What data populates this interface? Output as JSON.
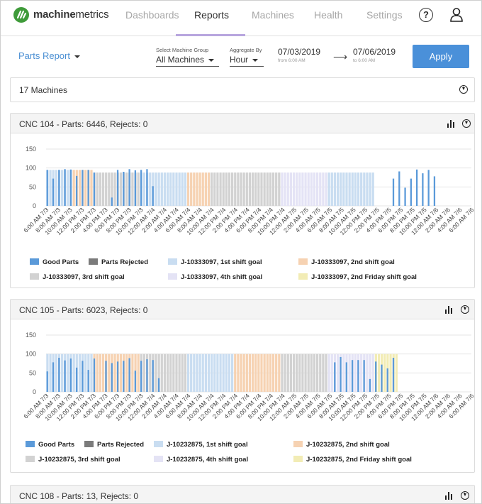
{
  "brand": {
    "bold": "machine",
    "rest": "metrics"
  },
  "nav": {
    "items": [
      "Dashboards",
      "Reports",
      "Machines",
      "Health",
      "Settings"
    ],
    "active": "Reports"
  },
  "filters": {
    "report": "Parts Report",
    "group_label": "Select Machine Group",
    "group_value": "All Machines",
    "agg_label": "Aggregate By",
    "agg_value": "Hour",
    "start_date": "07/03/2019",
    "start_sub": "from 6:00 AM",
    "end_date": "07/06/2019",
    "end_sub": "to 6:00 AM",
    "apply": "Apply"
  },
  "summary": {
    "label": "17 Machines"
  },
  "colors": {
    "good": "#5b9ad9",
    "rejected": "#7b7b7b",
    "shift1": "#c9ddf1",
    "shift2": "#f6d2b2",
    "shift3": "#d2d2d2",
    "shift4": "#e4e3f5",
    "friday": "#f2ecb5",
    "grid": "#e4e4e4"
  },
  "panels": [
    {
      "title": "CNC 104 - Parts: 6446, Rejects: 0",
      "legend": [
        "Good Parts",
        "Parts Rejected",
        "J-10333097, 1st shift goal",
        "J-10333097, 2nd shift goal",
        "J-10333097, 3rd shift goal",
        "J-10333097, 4th shift goal",
        "J-10333097, 2nd Friday shift goal"
      ],
      "chart_data": {
        "type": "bar",
        "ylim": [
          0,
          150
        ],
        "yticks": [
          0,
          50,
          100,
          150
        ],
        "xticks": [
          "6:00 AM 7/3",
          "8:00 AM 7/3",
          "10:00 AM 7/3",
          "12:00 PM 7/3",
          "2:00 PM 7/3",
          "4:00 PM 7/3",
          "6:00 PM 7/3",
          "8:00 PM 7/3",
          "10:00 PM 7/3",
          "12:00 AM 7/4",
          "2:00 AM 7/4",
          "4:00 AM 7/4",
          "6:00 AM 7/4",
          "8:00 AM 7/4",
          "10:00 AM 7/4",
          "12:00 PM 7/4",
          "2:00 PM 7/4",
          "4:00 PM 7/4",
          "6:00 PM 7/4",
          "8:00 PM 7/4",
          "10:00 PM 7/4",
          "12:00 AM 7/5",
          "2:00 AM 7/5",
          "4:00 AM 7/5",
          "6:00 AM 7/5",
          "8:00 AM 7/5",
          "10:00 AM 7/5",
          "12:00 PM 7/5",
          "2:00 PM 7/5",
          "4:00 PM 7/5",
          "6:00 PM 7/5",
          "8:00 PM 7/5",
          "10:00 PM 7/5",
          "12:00 AM 7/6",
          "2:00 AM 7/6",
          "4:00 AM 7/6",
          "6:00 AM 7/6"
        ],
        "goal_shifts": [
          1,
          1,
          1,
          1,
          1,
          1,
          1,
          1,
          1,
          2,
          2,
          2,
          2,
          2,
          2,
          2,
          3,
          3,
          3,
          3,
          3,
          3,
          3,
          3,
          3,
          3,
          3,
          3,
          3,
          3,
          3,
          3,
          1,
          1,
          1,
          1,
          1,
          1,
          1,
          1,
          1,
          1,
          1,
          1,
          1,
          1,
          1,
          1,
          2,
          2,
          2,
          2,
          2,
          2,
          2,
          2,
          3,
          3,
          3,
          3,
          3,
          3,
          3,
          3,
          3,
          3,
          3,
          3,
          3,
          3,
          3,
          3,
          3,
          3,
          3,
          3,
          3,
          3,
          3,
          3,
          4,
          4,
          4,
          4,
          4,
          4,
          4,
          4,
          4,
          4,
          4,
          4,
          4,
          4,
          4,
          4,
          1,
          1,
          1,
          1,
          1,
          1,
          1,
          1,
          1,
          1,
          1,
          1,
          1,
          1,
          1,
          1,
          0,
          0,
          0,
          0,
          0,
          0,
          0,
          0,
          0,
          0,
          0,
          0,
          0,
          0,
          0,
          0,
          0,
          0,
          0,
          0,
          0,
          0,
          0,
          0,
          0,
          0,
          0,
          0,
          0,
          0,
          0,
          0,
          0
        ],
        "goal_values": [
          95,
          95,
          95,
          95,
          95,
          95,
          95,
          95,
          95,
          95,
          95,
          95,
          95,
          95,
          95,
          95,
          88,
          88,
          88,
          88,
          88,
          88,
          88,
          88,
          88,
          88,
          88,
          88,
          88,
          88,
          88,
          88,
          88,
          88,
          88,
          88,
          88,
          88,
          88,
          88,
          88,
          88,
          88,
          88,
          88,
          88,
          88,
          88,
          88,
          88,
          88,
          88,
          88,
          88,
          88,
          88,
          88,
          88,
          88,
          88,
          88,
          88,
          88,
          88,
          88,
          88,
          88,
          88,
          88,
          88,
          88,
          88,
          88,
          88,
          88,
          88,
          88,
          88,
          88,
          88,
          88,
          88,
          88,
          88,
          88,
          88,
          88,
          88,
          88,
          88,
          88,
          88,
          88,
          88,
          88,
          88,
          88,
          88,
          88,
          88,
          88,
          88,
          88,
          88,
          88,
          88,
          88,
          88,
          88,
          88,
          88,
          88,
          0,
          0,
          0,
          0,
          0,
          0,
          0,
          0,
          0,
          0,
          0,
          0,
          0,
          0,
          0,
          0,
          0,
          0,
          0,
          0,
          0,
          0,
          0,
          0,
          0,
          0,
          0,
          0,
          0,
          0,
          0,
          0,
          0
        ],
        "good_parts": [
          95,
          0,
          72,
          0,
          95,
          0,
          97,
          0,
          96,
          0,
          79,
          0,
          95,
          0,
          95,
          0,
          88,
          0,
          0,
          0,
          0,
          0,
          22,
          0,
          95,
          0,
          90,
          0,
          97,
          0,
          94,
          0,
          95,
          0,
          97,
          0,
          52,
          0,
          0,
          0,
          0,
          0,
          0,
          0,
          0,
          0,
          0,
          0,
          0,
          0,
          0,
          0,
          0,
          0,
          0,
          0,
          0,
          0,
          0,
          0,
          0,
          0,
          0,
          0,
          0,
          0,
          0,
          0,
          0,
          0,
          0,
          0,
          0,
          0,
          0,
          0,
          0,
          0,
          0,
          0,
          0,
          0,
          0,
          0,
          0,
          0,
          0,
          0,
          0,
          0,
          0,
          0,
          0,
          0,
          0,
          0,
          0,
          0,
          0,
          0,
          0,
          0,
          0,
          0,
          0,
          0,
          0,
          0,
          0,
          0,
          0,
          0,
          0,
          0,
          0,
          0,
          0,
          0,
          72,
          0,
          91,
          0,
          48,
          0,
          72,
          0,
          96,
          0,
          86,
          0,
          95,
          0,
          78,
          0,
          0,
          0,
          0,
          0,
          0,
          0,
          0,
          0,
          0,
          0,
          0,
          0,
          0
        ],
        "friday_index": 144
      }
    },
    {
      "title": "CNC 105 - Parts: 6023, Rejects: 0",
      "legend": [
        "Good Parts",
        "Parts Rejected",
        "J-10232875, 1st shift goal",
        "J-10232875, 2nd shift goal",
        "J-10232875, 3rd shift goal",
        "J-10232875, 4th shift goal",
        "J-10232875, 2nd Friday shift goal"
      ],
      "chart_data": {
        "type": "bar",
        "ylim": [
          0,
          150
        ],
        "yticks": [
          0,
          50,
          100,
          150
        ],
        "xticks": [
          "6:00 AM 7/3",
          "8:00 AM 7/3",
          "10:00 AM 7/3",
          "12:00 PM 7/3",
          "2:00 PM 7/3",
          "4:00 PM 7/3",
          "6:00 PM 7/3",
          "8:00 PM 7/3",
          "10:00 PM 7/3",
          "12:00 AM 7/4",
          "2:00 AM 7/4",
          "4:00 AM 7/4",
          "6:00 AM 7/4",
          "8:00 AM 7/4",
          "10:00 AM 7/4",
          "12:00 PM 7/4",
          "2:00 PM 7/4",
          "4:00 PM 7/4",
          "6:00 PM 7/4",
          "8:00 PM 7/4",
          "10:00 PM 7/4",
          "12:00 AM 7/5",
          "2:00 AM 7/5",
          "4:00 AM 7/5",
          "6:00 AM 7/5",
          "8:00 AM 7/5",
          "10:00 AM 7/5",
          "12:00 PM 7/5",
          "2:00 PM 7/5",
          "4:00 PM 7/5",
          "6:00 PM 7/5",
          "8:00 PM 7/5",
          "10:00 PM 7/5",
          "12:00 AM 7/6",
          "2:00 AM 7/6",
          "4:00 AM 7/6",
          "6:00 AM 7/6"
        ],
        "goal_shifts": [
          1,
          1,
          1,
          1,
          1,
          1,
          1,
          1,
          1,
          1,
          1,
          1,
          1,
          1,
          1,
          1,
          2,
          2,
          2,
          2,
          2,
          2,
          2,
          2,
          2,
          2,
          2,
          2,
          2,
          2,
          2,
          2,
          3,
          3,
          3,
          3,
          3,
          3,
          3,
          3,
          3,
          3,
          3,
          3,
          3,
          3,
          3,
          3,
          1,
          1,
          1,
          1,
          1,
          1,
          1,
          1,
          1,
          1,
          1,
          1,
          1,
          1,
          1,
          1,
          2,
          2,
          2,
          2,
          2,
          2,
          2,
          2,
          2,
          2,
          2,
          2,
          2,
          2,
          2,
          2,
          3,
          3,
          3,
          3,
          3,
          3,
          3,
          3,
          3,
          3,
          3,
          3,
          3,
          3,
          3,
          3,
          4,
          4,
          4,
          4,
          4,
          4,
          4,
          4,
          4,
          4,
          4,
          4,
          4,
          4,
          4,
          4,
          5,
          5,
          5,
          5,
          5,
          5,
          5,
          5,
          0,
          0,
          0,
          0,
          0,
          0,
          0,
          0,
          0,
          0,
          0,
          0,
          0,
          0,
          0,
          0,
          0,
          0,
          0,
          0,
          0,
          0,
          0,
          0,
          0
        ],
        "goal_values": [
          100,
          100,
          100,
          100,
          100,
          100,
          100,
          100,
          100,
          100,
          100,
          100,
          100,
          100,
          100,
          100,
          100,
          100,
          100,
          100,
          100,
          100,
          100,
          100,
          100,
          100,
          100,
          100,
          100,
          100,
          100,
          100,
          100,
          100,
          100,
          100,
          100,
          100,
          100,
          100,
          100,
          100,
          100,
          100,
          100,
          100,
          100,
          100,
          100,
          100,
          100,
          100,
          100,
          100,
          100,
          100,
          100,
          100,
          100,
          100,
          100,
          100,
          100,
          100,
          100,
          100,
          100,
          100,
          100,
          100,
          100,
          100,
          100,
          100,
          100,
          100,
          100,
          100,
          100,
          100,
          100,
          100,
          100,
          100,
          100,
          100,
          100,
          100,
          100,
          100,
          100,
          100,
          100,
          100,
          100,
          100,
          100,
          100,
          100,
          100,
          100,
          100,
          100,
          100,
          100,
          100,
          100,
          100,
          100,
          100,
          100,
          100,
          100,
          100,
          100,
          100,
          100,
          100,
          100,
          100,
          0,
          0,
          0,
          0,
          0,
          0,
          0,
          0,
          0,
          0,
          0,
          0,
          0,
          0,
          0,
          0,
          0,
          0,
          0,
          0,
          0,
          0,
          0,
          0,
          0
        ],
        "good_parts": [
          54,
          0,
          78,
          0,
          90,
          0,
          83,
          0,
          88,
          0,
          64,
          0,
          82,
          0,
          58,
          0,
          88,
          0,
          0,
          0,
          82,
          0,
          76,
          0,
          80,
          0,
          82,
          0,
          89,
          0,
          56,
          0,
          82,
          0,
          86,
          0,
          84,
          0,
          36,
          0,
          0,
          0,
          0,
          0,
          0,
          0,
          0,
          0,
          0,
          0,
          0,
          0,
          0,
          0,
          0,
          0,
          0,
          0,
          0,
          0,
          0,
          0,
          0,
          0,
          0,
          0,
          0,
          0,
          0,
          0,
          0,
          0,
          0,
          0,
          0,
          0,
          0,
          0,
          0,
          0,
          0,
          0,
          0,
          0,
          0,
          0,
          0,
          0,
          0,
          0,
          0,
          0,
          0,
          0,
          0,
          0,
          0,
          0,
          78,
          0,
          92,
          0,
          78,
          0,
          84,
          0,
          84,
          0,
          84,
          0,
          34,
          0,
          80,
          0,
          72,
          0,
          62,
          0,
          90,
          0,
          0,
          0,
          0,
          0,
          0,
          0,
          0,
          0,
          0,
          0,
          0,
          0,
          0,
          0,
          0,
          0,
          0,
          0,
          0,
          0,
          0,
          0,
          0
        ],
        "friday_index": -1
      }
    },
    {
      "title": "CNC 108 - Parts: 13, Rejects: 0"
    }
  ]
}
